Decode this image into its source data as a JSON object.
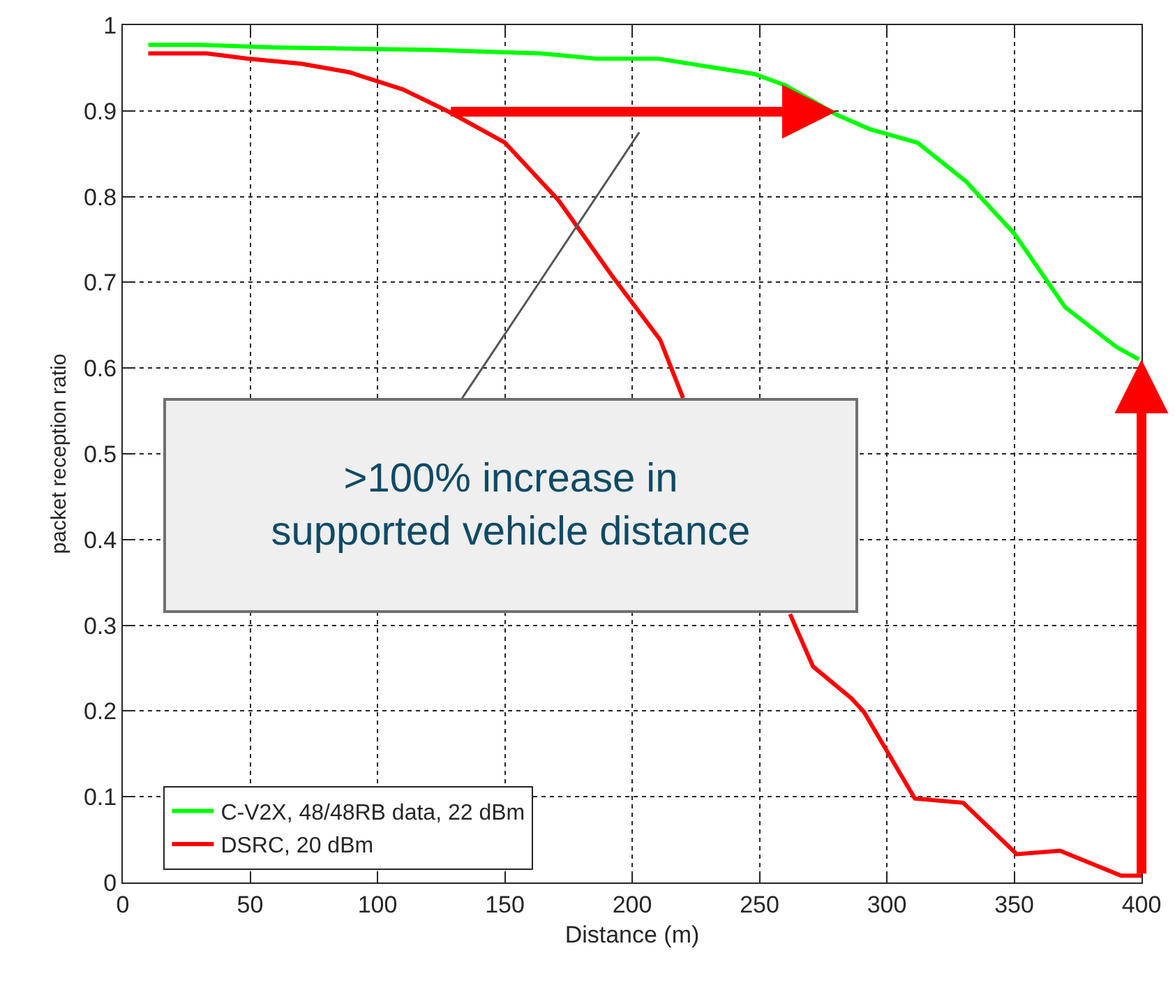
{
  "chart_data": {
    "type": "line",
    "xlabel": "Distance (m)",
    "ylabel": "packet reception ratio",
    "xlim": [
      0,
      400
    ],
    "xticks": [
      0,
      50,
      100,
      150,
      200,
      250,
      300,
      350,
      400
    ],
    "ylim": [
      0,
      1
    ],
    "yticks": [
      0,
      0.1,
      0.2,
      0.3,
      0.4,
      0.5,
      0.6,
      0.7,
      0.8,
      0.9,
      1
    ],
    "grid": true,
    "legend": "bottom left",
    "line_style": "solid",
    "marker": "none",
    "series": [
      {
        "name": "C-V2X, 48/48RB data, 22 dBm",
        "color": "#00ff00",
        "x": [
          10,
          30,
          60,
          122,
          164,
          186,
          210,
          248,
          260,
          280,
          293,
          312,
          331,
          350,
          370,
          390,
          399
        ],
        "values": [
          0.977,
          0.977,
          0.974,
          0.971,
          0.967,
          0.961,
          0.961,
          0.943,
          0.93,
          0.896,
          0.879,
          0.863,
          0.818,
          0.757,
          0.671,
          0.625,
          0.61
        ]
      },
      {
        "name": "DSRC, 20 dBm",
        "color": "#ff0000",
        "x": [
          10,
          33,
          49,
          70,
          89,
          110,
          128,
          150,
          171,
          192,
          211,
          220,
          240,
          262,
          271,
          286,
          291,
          311,
          330,
          351,
          368,
          392,
          400
        ],
        "values": [
          0.967,
          0.967,
          0.961,
          0.955,
          0.945,
          0.925,
          0.899,
          0.863,
          0.796,
          0.708,
          0.633,
          0.565,
          null,
          0.313,
          0.252,
          0.215,
          0.199,
          0.098,
          0.093,
          0.033,
          0.037,
          0.008,
          0.008
        ]
      }
    ],
    "annotations": [
      ">100% increase in\nsupported vehicle distance"
    ]
  }
}
